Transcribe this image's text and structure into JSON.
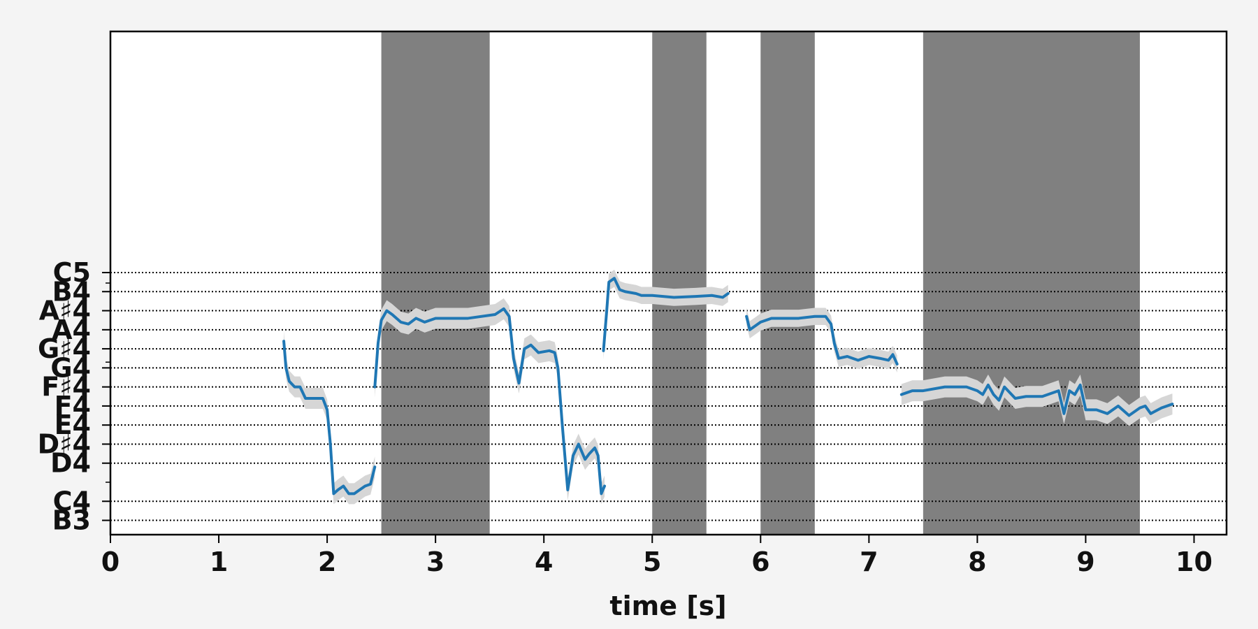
{
  "chart_data": {
    "type": "line",
    "xlabel": "time [s]",
    "ylabel": "",
    "xlim": [
      0,
      10.3
    ],
    "ylim": [
      46.25,
      72.65
    ],
    "grid": "horizontal dotted at each labeled pitch",
    "x_ticks": [
      0,
      1,
      2,
      3,
      4,
      5,
      6,
      7,
      8,
      9,
      10
    ],
    "y_ticks": [
      {
        "label": "B3",
        "midi": 47
      },
      {
        "label": "C4",
        "midi": 48
      },
      {
        "label": "D4",
        "midi": 50
      },
      {
        "label": "D♯4",
        "midi": 51
      },
      {
        "label": "E4",
        "midi": 52
      },
      {
        "label": "F4",
        "midi": 53
      },
      {
        "label": "F♯4",
        "midi": 54
      },
      {
        "label": "G4",
        "midi": 55
      },
      {
        "label": "G♯4",
        "midi": 56
      },
      {
        "label": "A4",
        "midi": 57
      },
      {
        "label": "A♯4",
        "midi": 58
      },
      {
        "label": "B4",
        "midi": 59
      },
      {
        "label": "C5",
        "midi": 60
      }
    ],
    "minor_y_ticks": [
      49,
      55.3,
      59.45
    ],
    "shaded_regions": [
      [
        2.5,
        3.5
      ],
      [
        5.0,
        5.5
      ],
      [
        6.0,
        6.5
      ],
      [
        7.5,
        9.5
      ]
    ],
    "colors": {
      "line": "#1f77b4",
      "band": "#d6d6d6",
      "shade": "#808080",
      "grid": "#000000",
      "background": "#ffffff",
      "page": "#f4f4f4"
    },
    "series": [
      {
        "segment": 1,
        "band": 0.55,
        "points": [
          [
            1.6,
            56.4
          ],
          [
            1.62,
            55.0
          ],
          [
            1.65,
            54.3
          ],
          [
            1.7,
            54.0
          ],
          [
            1.75,
            54.0
          ],
          [
            1.8,
            53.4
          ],
          [
            1.85,
            53.4
          ],
          [
            1.9,
            53.4
          ],
          [
            1.96,
            53.4
          ],
          [
            2.0,
            52.8
          ],
          [
            2.03,
            51.0
          ],
          [
            2.06,
            48.4
          ],
          [
            2.1,
            48.6
          ],
          [
            2.15,
            48.8
          ],
          [
            2.2,
            48.4
          ],
          [
            2.25,
            48.4
          ],
          [
            2.3,
            48.6
          ],
          [
            2.35,
            48.8
          ],
          [
            2.4,
            48.9
          ],
          [
            2.44,
            49.8
          ]
        ]
      },
      {
        "segment": 2,
        "band": 0.55,
        "points": [
          [
            2.44,
            54.0
          ],
          [
            2.47,
            56.3
          ],
          [
            2.5,
            57.5
          ],
          [
            2.55,
            58.0
          ],
          [
            2.6,
            57.8
          ],
          [
            2.68,
            57.4
          ],
          [
            2.75,
            57.3
          ],
          [
            2.82,
            57.6
          ],
          [
            2.9,
            57.4
          ],
          [
            3.0,
            57.6
          ],
          [
            3.3,
            57.6
          ],
          [
            3.55,
            57.8
          ],
          [
            3.63,
            58.1
          ],
          [
            3.68,
            57.7
          ],
          [
            3.72,
            55.5
          ],
          [
            3.77,
            54.2
          ],
          [
            3.82,
            56.0
          ],
          [
            3.88,
            56.2
          ],
          [
            3.95,
            55.8
          ],
          [
            4.05,
            55.9
          ],
          [
            4.1,
            55.8
          ],
          [
            4.13,
            55.0
          ],
          [
            4.17,
            52.0
          ],
          [
            4.22,
            48.6
          ],
          [
            4.27,
            50.4
          ],
          [
            4.32,
            51.0
          ],
          [
            4.38,
            50.2
          ],
          [
            4.42,
            50.5
          ],
          [
            4.47,
            50.8
          ],
          [
            4.5,
            50.4
          ],
          [
            4.53,
            48.4
          ],
          [
            4.56,
            48.8
          ]
        ]
      },
      {
        "segment": 3,
        "band": 0.45,
        "points": [
          [
            4.55,
            55.9
          ],
          [
            4.58,
            58.0
          ],
          [
            4.6,
            59.5
          ],
          [
            4.65,
            59.7
          ],
          [
            4.7,
            59.1
          ],
          [
            4.75,
            59.0
          ],
          [
            4.85,
            58.9
          ],
          [
            4.9,
            58.8
          ],
          [
            5.0,
            58.8
          ],
          [
            5.2,
            58.7
          ],
          [
            5.4,
            58.75
          ],
          [
            5.55,
            58.8
          ],
          [
            5.65,
            58.7
          ],
          [
            5.7,
            58.9
          ]
        ]
      },
      {
        "segment": 4,
        "band": 0.45,
        "points": [
          [
            5.87,
            57.7
          ],
          [
            5.9,
            57.0
          ],
          [
            5.95,
            57.2
          ],
          [
            6.0,
            57.4
          ],
          [
            6.1,
            57.6
          ],
          [
            6.2,
            57.6
          ],
          [
            6.35,
            57.6
          ],
          [
            6.5,
            57.7
          ],
          [
            6.6,
            57.7
          ],
          [
            6.65,
            57.3
          ],
          [
            6.68,
            56.3
          ],
          [
            6.72,
            55.5
          ],
          [
            6.8,
            55.6
          ],
          [
            6.9,
            55.4
          ],
          [
            7.0,
            55.6
          ],
          [
            7.1,
            55.5
          ],
          [
            7.18,
            55.4
          ],
          [
            7.22,
            55.7
          ],
          [
            7.26,
            55.2
          ]
        ]
      },
      {
        "segment": 5,
        "band": 0.55,
        "points": [
          [
            7.3,
            53.6
          ],
          [
            7.35,
            53.7
          ],
          [
            7.4,
            53.8
          ],
          [
            7.5,
            53.8
          ],
          [
            7.7,
            54.0
          ],
          [
            7.9,
            54.0
          ],
          [
            8.0,
            53.8
          ],
          [
            8.05,
            53.6
          ],
          [
            8.1,
            54.1
          ],
          [
            8.15,
            53.6
          ],
          [
            8.2,
            53.3
          ],
          [
            8.25,
            54.0
          ],
          [
            8.35,
            53.4
          ],
          [
            8.45,
            53.5
          ],
          [
            8.6,
            53.5
          ],
          [
            8.75,
            53.8
          ],
          [
            8.8,
            52.6
          ],
          [
            8.85,
            53.8
          ],
          [
            8.9,
            53.6
          ],
          [
            8.95,
            54.1
          ],
          [
            9.0,
            52.8
          ],
          [
            9.1,
            52.8
          ],
          [
            9.2,
            52.6
          ],
          [
            9.3,
            53.0
          ],
          [
            9.4,
            52.5
          ],
          [
            9.5,
            52.9
          ],
          [
            9.55,
            53.0
          ],
          [
            9.6,
            52.6
          ],
          [
            9.7,
            52.9
          ],
          [
            9.8,
            53.1
          ]
        ]
      }
    ]
  }
}
